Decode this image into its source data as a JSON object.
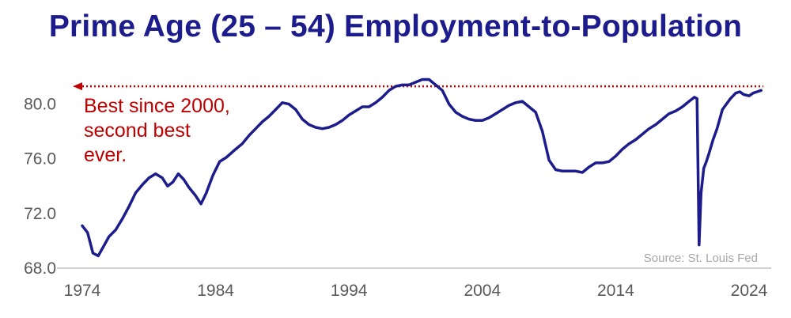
{
  "chart_data": {
    "type": "line",
    "title": "Prime Age (25 – 54) Employment-to-Population",
    "xlabel": "",
    "ylabel": "",
    "xlim": [
      1974,
      2025
    ],
    "ylim": [
      68.0,
      82.0
    ],
    "x_ticks": [
      "1974",
      "1984",
      "1994",
      "2004",
      "2014",
      "2024"
    ],
    "y_ticks": [
      "68.0",
      "72.0",
      "76.0",
      "80.0"
    ],
    "grid": false,
    "line_color": "#1c1c8c",
    "reference_line": {
      "y": 81.3,
      "style": "dotted",
      "color": "#c00000",
      "arrow": "left"
    },
    "annotation": [
      "Best since 2000,",
      "second best",
      "ever."
    ],
    "source": "Source: St. Louis Fed",
    "series": [
      {
        "x": [
          1974.0,
          1974.4,
          1974.8,
          1975.2,
          1975.6,
          1976.0,
          1976.5,
          1977.0,
          1977.5,
          1978.0,
          1978.5,
          1979.0,
          1979.5,
          1980.0,
          1980.4,
          1980.8,
          1981.2,
          1981.6,
          1982.0,
          1982.5,
          1982.9,
          1983.3,
          1983.8,
          1984.3,
          1984.8,
          1985.5,
          1986.0,
          1986.5,
          1987.0,
          1987.5,
          1988.0,
          1988.5,
          1989.0,
          1989.5,
          1990.0,
          1990.5,
          1991.0,
          1991.5,
          1992.0,
          1992.5,
          1993.0,
          1993.5,
          1994.0,
          1994.5,
          1995.0,
          1995.5,
          1996.0,
          1996.5,
          1997.0,
          1997.5,
          1998.0,
          1998.5,
          1999.0,
          1999.5,
          2000.0,
          2000.5,
          2001.0,
          2001.5,
          2002.0,
          2002.5,
          2003.0,
          2003.5,
          2004.0,
          2004.5,
          2005.0,
          2005.5,
          2006.0,
          2006.5,
          2007.0,
          2007.5,
          2008.0,
          2008.5,
          2009.0,
          2009.5,
          2010.0,
          2010.5,
          2011.0,
          2011.5,
          2012.0,
          2012.5,
          2013.0,
          2013.5,
          2014.0,
          2014.5,
          2015.0,
          2015.5,
          2016.0,
          2016.5,
          2017.0,
          2017.5,
          2018.0,
          2018.5,
          2019.0,
          2019.5,
          2019.9,
          2020.1,
          2020.25,
          2020.4,
          2020.6,
          2020.8,
          2021.0,
          2021.3,
          2021.6,
          2022.0,
          2022.3,
          2022.6,
          2023.0,
          2023.3,
          2023.6,
          2024.0,
          2024.3,
          2024.6,
          2024.9
        ],
        "y": [
          71.1,
          70.6,
          69.1,
          68.9,
          69.6,
          70.3,
          70.8,
          71.6,
          72.5,
          73.5,
          74.1,
          74.6,
          74.9,
          74.6,
          74.0,
          74.3,
          74.9,
          74.5,
          73.9,
          73.3,
          72.7,
          73.5,
          74.8,
          75.8,
          76.1,
          76.7,
          77.1,
          77.7,
          78.2,
          78.7,
          79.1,
          79.6,
          80.1,
          80.0,
          79.6,
          78.9,
          78.5,
          78.3,
          78.2,
          78.3,
          78.5,
          78.8,
          79.2,
          79.5,
          79.8,
          79.8,
          80.1,
          80.5,
          81.0,
          81.3,
          81.4,
          81.4,
          81.6,
          81.8,
          81.8,
          81.4,
          81.0,
          80.0,
          79.4,
          79.1,
          78.9,
          78.8,
          78.8,
          79.0,
          79.3,
          79.6,
          79.9,
          80.1,
          80.2,
          79.8,
          79.4,
          78.0,
          75.9,
          75.2,
          75.1,
          75.1,
          75.1,
          75.0,
          75.4,
          75.7,
          75.7,
          75.8,
          76.2,
          76.7,
          77.1,
          77.4,
          77.8,
          78.2,
          78.5,
          78.9,
          79.3,
          79.5,
          79.8,
          80.2,
          80.5,
          80.4,
          69.7,
          73.5,
          75.3,
          75.8,
          76.4,
          77.4,
          78.2,
          79.6,
          80.0,
          80.4,
          80.8,
          80.9,
          80.7,
          80.6,
          80.8,
          80.9,
          81.0
        ]
      }
    ]
  }
}
